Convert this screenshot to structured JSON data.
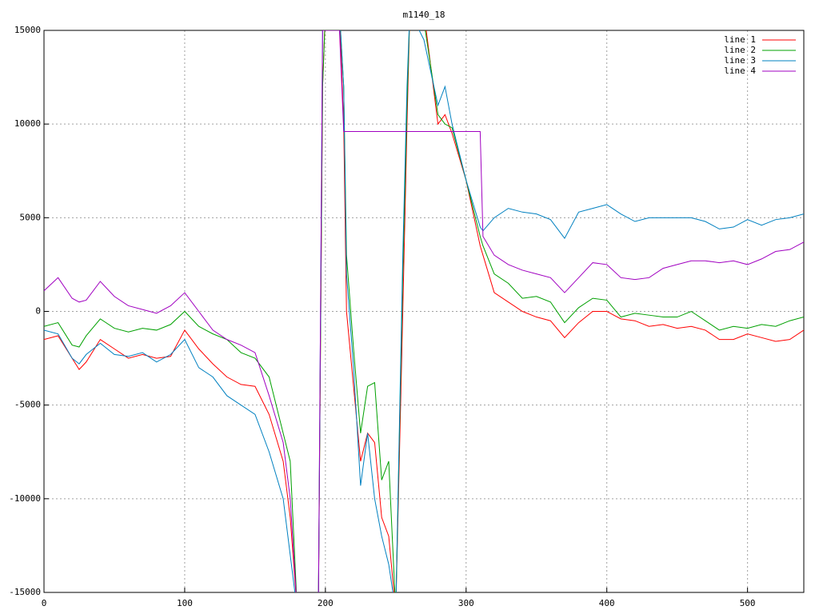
{
  "chart_data": {
    "type": "line",
    "title": "m1140_18",
    "x": [
      0,
      10,
      20,
      25,
      30,
      40,
      50,
      60,
      70,
      80,
      90,
      100,
      110,
      120,
      130,
      140,
      150,
      160,
      170,
      175,
      180,
      195,
      198,
      200,
      210,
      213,
      215,
      220,
      225,
      230,
      235,
      240,
      245,
      250,
      255,
      258,
      260,
      270,
      280,
      285,
      290,
      300,
      310,
      312,
      320,
      330,
      340,
      350,
      360,
      370,
      380,
      390,
      400,
      410,
      420,
      430,
      440,
      450,
      460,
      470,
      480,
      490,
      500,
      510,
      520,
      530,
      540
    ],
    "series": [
      {
        "name": "line 1",
        "color": "#ff0000",
        "values": [
          -1500,
          -1300,
          -2500,
          -3100,
          -2700,
          -1500,
          -2000,
          -2500,
          -2300,
          -2500,
          -2400,
          -1000,
          -2000,
          -2800,
          -3500,
          -3900,
          -4000,
          -5500,
          -8000,
          -11000,
          -16000,
          -16000,
          12000,
          16000,
          16000,
          10000,
          0,
          -4000,
          -8000,
          -6500,
          -7000,
          -11000,
          -12000,
          -16000,
          0,
          10000,
          16000,
          16000,
          10000,
          10500,
          9500,
          7000,
          3500,
          3000,
          1000,
          500,
          0,
          -300,
          -500,
          -1400,
          -600,
          0,
          0,
          -400,
          -500,
          -800,
          -700,
          -900,
          -800,
          -1000,
          -1500,
          -1500,
          -1200,
          -1400,
          -1600,
          -1500,
          -1000
        ]
      },
      {
        "name": "line 2",
        "color": "#00a000",
        "values": [
          -800,
          -600,
          -1800,
          -1900,
          -1300,
          -400,
          -900,
          -1100,
          -900,
          -1000,
          -700,
          0,
          -800,
          -1200,
          -1500,
          -2200,
          -2500,
          -3500,
          -6500,
          -8000,
          -16000,
          -16000,
          12000,
          16000,
          16000,
          12000,
          3000,
          -2000,
          -6500,
          -4000,
          -3800,
          -9000,
          -8000,
          -16000,
          2000,
          11000,
          16000,
          15500,
          10500,
          10000,
          9800,
          7000,
          4000,
          3500,
          2000,
          1500,
          700,
          800,
          500,
          -600,
          200,
          700,
          600,
          -300,
          -100,
          -200,
          -300,
          -300,
          0,
          -500,
          -1000,
          -800,
          -900,
          -700,
          -800,
          -500,
          -300
        ]
      },
      {
        "name": "line 3",
        "color": "#0080c0",
        "values": [
          -1000,
          -1200,
          -2500,
          -2800,
          -2300,
          -1700,
          -2300,
          -2400,
          -2200,
          -2700,
          -2300,
          -1500,
          -3000,
          -3500,
          -4500,
          -5000,
          -5500,
          -7500,
          -10000,
          -13000,
          -16000,
          -16000,
          15000,
          16000,
          16000,
          12000,
          2000,
          -3000,
          -9300,
          -6500,
          -10000,
          -12000,
          -13500,
          -16000,
          3000,
          12000,
          16000,
          14500,
          11000,
          12000,
          10000,
          7000,
          4500,
          4300,
          5000,
          5500,
          5300,
          5200,
          4900,
          3900,
          5300,
          5500,
          5700,
          5200,
          4800,
          5000,
          5000,
          5000,
          5000,
          4800,
          4400,
          4500,
          4900,
          4600,
          4900,
          5000,
          5200
        ]
      },
      {
        "name": "line 4",
        "color": "#a000c0",
        "values": [
          1100,
          1800,
          700,
          500,
          600,
          1600,
          800,
          300,
          100,
          -100,
          300,
          1000,
          0,
          -1000,
          -1500,
          -1800,
          -2200,
          -4500,
          -7000,
          -10000,
          -16000,
          -16000,
          15000,
          15000,
          15000,
          9600,
          9600,
          9600,
          9600,
          9600,
          9600,
          9600,
          9600,
          9600,
          9600,
          9600,
          9600,
          9600,
          9600,
          9600,
          9600,
          9600,
          9600,
          4000,
          3000,
          2500,
          2200,
          2000,
          1800,
          1000,
          1800,
          2600,
          2500,
          1800,
          1700,
          1800,
          2300,
          2500,
          2700,
          2700,
          2600,
          2700,
          2500,
          2800,
          3200,
          3300,
          3700
        ]
      }
    ],
    "xlim": [
      0,
      540
    ],
    "xticks": [
      0,
      100,
      200,
      300,
      400,
      500
    ],
    "ylim": [
      -15000,
      15000
    ],
    "yticks": [
      -15000,
      -10000,
      -5000,
      0,
      5000,
      10000,
      15000
    ],
    "grid": true,
    "legend": "top-right"
  }
}
